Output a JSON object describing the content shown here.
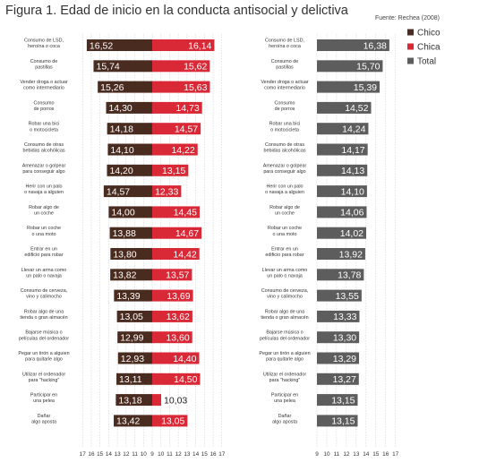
{
  "title": "Figura 1. Edad de inicio en la conducta antisocial y delictiva",
  "source": "Fuente: Rechea (2008)",
  "colors": {
    "chico": "#4a2b20",
    "chica": "#d92836",
    "total": "#5d5d5d",
    "grid": "#c8c8c8"
  },
  "chart_data": [
    {
      "type": "bar",
      "orientation": "horizontal",
      "layout": "back-to-back",
      "categories": [
        "Consumo de LSD,\nheroína o coca",
        "Consumo de\npastillas",
        "Vender droga o actuar\ncomo intermediario",
        "Consumo\nde porros",
        "Robar una bici\no motocicleta",
        "Consumo de otras\nbebidas alcohólicas",
        "Amenazar o golpear\npara conseguir algo",
        "Herir con un palo\no navaja a alguien",
        "Robar algo de\nun coche",
        "Robar un coche\no una moto",
        "Entrar en un\nedificio para robar",
        "Llevar un arma como\nun palo o navaja",
        "Consumo de cerveza,\nvino y calimocho",
        "Robar algo de una\ntienda o gran almacén",
        "Bajarse música o\npelículas del ordenador",
        "Pegar un tirón a alguien\npara quitarle algo",
        "Utilizar el ordenador\npara \"hacking\"",
        "Participar en\nuna pelea",
        "Dañar\nalgo aposta"
      ],
      "series": [
        {
          "name": "Chico",
          "values": [
            16.52,
            15.74,
            15.26,
            14.3,
            14.18,
            14.1,
            14.2,
            14.57,
            14.0,
            13.88,
            13.8,
            13.82,
            13.39,
            13.05,
            12.99,
            12.93,
            13.11,
            13.18,
            13.42
          ],
          "labels": [
            "16,52",
            "15,74",
            "15,26",
            "14,30",
            "14,18",
            "14,10",
            "14,20",
            "14,57",
            "14,00",
            "13,88",
            "13,80",
            "13,82",
            "13,39",
            "13,05",
            "12,99",
            "12,93",
            "13,11",
            "13,18",
            "13,42"
          ]
        },
        {
          "name": "Chica",
          "values": [
            16.14,
            15.62,
            15.63,
            14.73,
            14.57,
            14.22,
            13.15,
            12.33,
            14.45,
            14.67,
            14.42,
            13.57,
            13.69,
            13.62,
            13.6,
            14.4,
            14.5,
            10.03,
            13.05
          ],
          "labels": [
            "16,14",
            "15,62",
            "15,63",
            "14,73",
            "14,57",
            "14,22",
            "13,15",
            "12,33",
            "14,45",
            "14,67",
            "14,42",
            "13,57",
            "13,69",
            "13,62",
            "13,60",
            "14,40",
            "14,50",
            "10,03",
            "13,05"
          ]
        }
      ],
      "xlim": [
        9,
        17
      ],
      "x_ticks_left": [
        "17",
        "16",
        "15",
        "14",
        "13",
        "12",
        "11",
        "10",
        "9"
      ],
      "x_ticks_right": [
        "10",
        "11",
        "12",
        "13",
        "14",
        "15",
        "16",
        "17"
      ],
      "grid": true,
      "legend": "top-right"
    },
    {
      "type": "bar",
      "orientation": "horizontal",
      "categories": [
        "Consumo de LSD,\nheroína o coca",
        "Consumo de\npastillas",
        "Vender droga o actuar\ncomo intermediario",
        "Consumo\nde porros",
        "Robar una bici\no motocicleta",
        "Consumo de otras\nbebidas alcohólicas",
        "Amenazar o golpear\npara conseguir algo",
        "Herir con un palo\no navaja a alguien",
        "Robar algo de\nun coche",
        "Robar un coche\no una moto",
        "Entrar en un\nedificio para robar",
        "Llevar un arma como\nun palo o navaja",
        "Consumo de cerveza,\nvino y calimocho",
        "Robar algo de una\ntienda o gran almacén",
        "Bajarse música o\npelículas del ordenador",
        "Pegar un tirón a alguien\npara quitarle algo",
        "Utilizar el ordenador\npara \"hacking\"",
        "Participar en\nuna pelea",
        "Dañar\nalgo aposta"
      ],
      "series": [
        {
          "name": "Total",
          "values": [
            16.38,
            15.7,
            15.39,
            14.52,
            14.24,
            14.17,
            14.13,
            14.1,
            14.06,
            14.02,
            13.92,
            13.78,
            13.55,
            13.33,
            13.3,
            13.29,
            13.27,
            13.15,
            13.15
          ],
          "labels": [
            "16,38",
            "15,70",
            "15,39",
            "14,52",
            "14,24",
            "14,17",
            "14,13",
            "14,10",
            "14,06",
            "14,02",
            "13,92",
            "13,78",
            "13,55",
            "13,33",
            "13,30",
            "13,29",
            "13,27",
            "13,15",
            "13,15"
          ]
        }
      ],
      "xlim": [
        9,
        17
      ],
      "x_ticks": [
        "9",
        "10",
        "11",
        "12",
        "13",
        "14",
        "15",
        "16",
        "17"
      ],
      "grid": true
    }
  ],
  "legend": [
    {
      "name": "Chico",
      "color": "#4a2b20"
    },
    {
      "name": "Chica",
      "color": "#d92836"
    },
    {
      "name": "Total",
      "color": "#5d5d5d"
    }
  ]
}
